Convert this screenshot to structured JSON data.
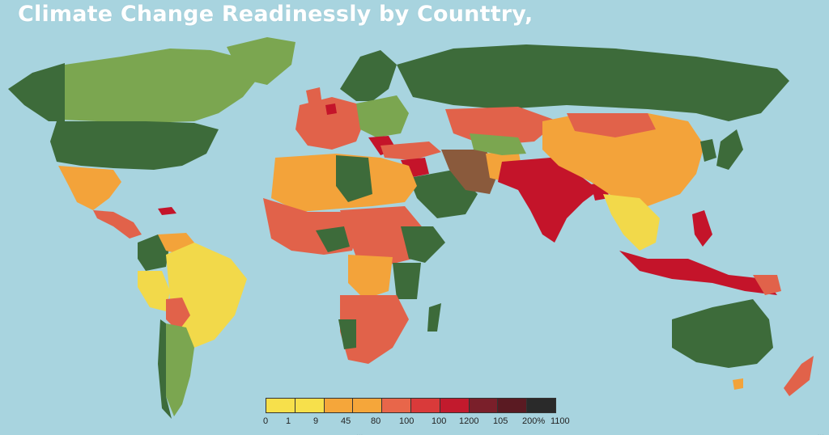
{
  "title": "Climate Change Readinessly by Counttry,",
  "colors": {
    "ocean": "#a8d4df",
    "dark_green": "#3d6b3a",
    "light_green": "#7ba650",
    "yellow": "#f2d94a",
    "orange": "#f3a33a",
    "red_orange": "#e1624a",
    "red": "#c4142a",
    "brown": "#8a5a3c"
  },
  "legend": {
    "swatches": [
      "#f7e04b",
      "#f7e04b",
      "#f5a63a",
      "#f5a63a",
      "#e8664a",
      "#d93a3a",
      "#c21a2d",
      "#7a1f2a",
      "#5a1a22",
      "#2a2a2a"
    ],
    "labels": [
      "0",
      "1",
      "9",
      "45",
      "80",
      "100",
      "100",
      "1200",
      "105",
      "200%",
      "1100"
    ],
    "subtitle": "...",
    "source": "..."
  }
}
